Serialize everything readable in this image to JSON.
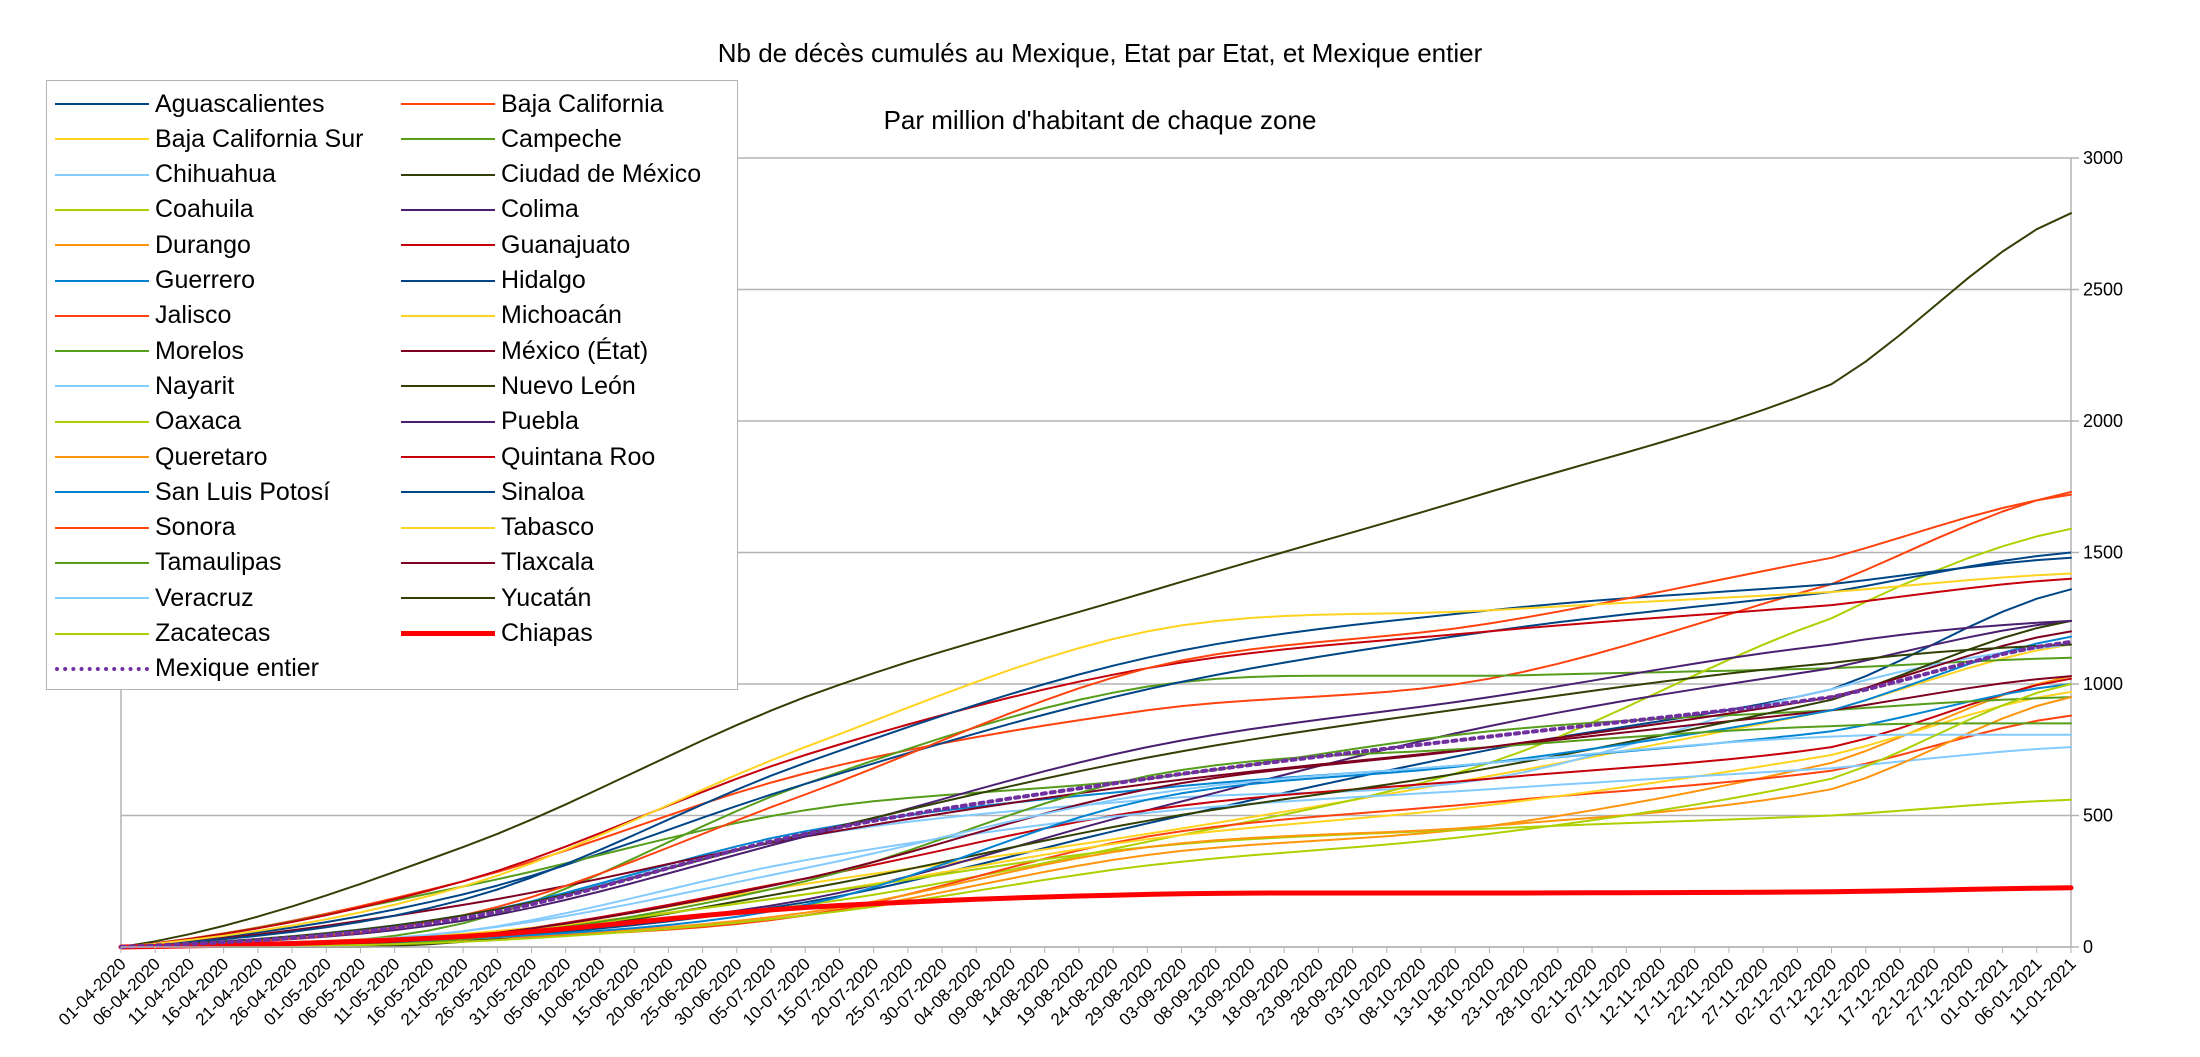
{
  "chart_data": {
    "type": "line",
    "title": "Nb de décès cumulés au Mexique, Etat par Etat, et Mexique entier",
    "subtitle": "Par million d'habitant de chaque zone",
    "xlabel": "",
    "ylabel": "",
    "ylim": [
      0,
      3000
    ],
    "yticks": [
      0,
      500,
      1000,
      1500,
      2000,
      2500,
      3000
    ],
    "y_axis_side": "right",
    "grid": true,
    "legend_position": "top-left",
    "x_tick_labels": [
      "01-04-2020",
      "06-04-2020",
      "11-04-2020",
      "16-04-2020",
      "21-04-2020",
      "26-04-2020",
      "01-05-2020",
      "06-05-2020",
      "11-05-2020",
      "16-05-2020",
      "21-05-2020",
      "26-05-2020",
      "31-05-2020",
      "05-06-2020",
      "10-06-2020",
      "15-06-2020",
      "20-06-2020",
      "25-06-2020",
      "30-06-2020",
      "05-07-2020",
      "10-07-2020",
      "15-07-2020",
      "20-07-2020",
      "25-07-2020",
      "30-07-2020",
      "04-08-2020",
      "09-08-2020",
      "14-08-2020",
      "19-08-2020",
      "24-08-2020",
      "29-08-2020",
      "03-09-2020",
      "08-09-2020",
      "13-09-2020",
      "18-09-2020",
      "23-09-2020",
      "28-09-2020",
      "03-10-2020",
      "08-10-2020",
      "13-10-2020",
      "18-10-2020",
      "23-10-2020",
      "28-10-2020",
      "02-11-2020",
      "07-11-2020",
      "12-11-2020",
      "17-11-2020",
      "22-11-2020",
      "27-11-2020",
      "02-12-2020",
      "07-12-2020",
      "12-12-2020",
      "17-12-2020",
      "22-12-2020",
      "27-12-2020",
      "01-01-2021",
      "06-01-2021",
      "11-01-2021"
    ],
    "x_anchor_index": [
      0,
      10,
      20,
      30,
      40,
      50,
      57
    ],
    "series": [
      {
        "name": "Aguascalientes",
        "color": "#004586",
        "width": 2,
        "values": [
          0,
          30,
          170,
          470,
          750,
          980,
          1360
        ]
      },
      {
        "name": "Baja California",
        "color": "#ff420e",
        "width": 2,
        "values": [
          0,
          250,
          660,
          900,
          1020,
          1380,
          1730
        ]
      },
      {
        "name": "Baja California Sur",
        "color": "#ffd320",
        "width": 2,
        "values": [
          0,
          40,
          240,
          430,
          650,
          900,
          1150
        ]
      },
      {
        "name": "Campeche",
        "color": "#579d1c",
        "width": 2,
        "values": [
          0,
          90,
          620,
          990,
          1030,
          1060,
          1100
        ]
      },
      {
        "name": "Chihuahua",
        "color": "#83caff",
        "width": 2,
        "values": [
          0,
          120,
          420,
          560,
          640,
          980,
          1150
        ]
      },
      {
        "name": "Ciudad de México",
        "color": "#314004",
        "width": 2,
        "values": [
          0,
          380,
          950,
          1350,
          1730,
          2140,
          2790
        ]
      },
      {
        "name": "Coahuila",
        "color": "#aecf00",
        "width": 2,
        "values": [
          0,
          50,
          160,
          400,
          700,
          1250,
          1590
        ]
      },
      {
        "name": "Colima",
        "color": "#4b1f6f",
        "width": 2,
        "values": [
          0,
          40,
          180,
          520,
          840,
          1060,
          1240
        ]
      },
      {
        "name": "Durango",
        "color": "#ff950e",
        "width": 2,
        "values": [
          0,
          25,
          120,
          350,
          460,
          700,
          1030
        ]
      },
      {
        "name": "Guanajuato",
        "color": "#c5000b",
        "width": 2,
        "values": [
          0,
          40,
          260,
          520,
          640,
          760,
          1020
        ]
      },
      {
        "name": "Guerrero",
        "color": "#0084d1",
        "width": 2,
        "values": [
          0,
          120,
          440,
          600,
          700,
          820,
          1000
        ]
      },
      {
        "name": "Hidalgo",
        "color": "#004586",
        "width": 2,
        "values": [
          0,
          200,
          620,
          980,
          1200,
          1350,
          1500
        ]
      },
      {
        "name": "Jalisco",
        "color": "#ff420e",
        "width": 2,
        "values": [
          0,
          30,
          120,
          420,
          550,
          670,
          880
        ]
      },
      {
        "name": "Michoacán",
        "color": "#ffd320",
        "width": 2,
        "values": [
          0,
          50,
          200,
          410,
          540,
          730,
          970
        ]
      },
      {
        "name": "Morelos",
        "color": "#579d1c",
        "width": 2,
        "values": [
          0,
          230,
          520,
          640,
          820,
          900,
          950
        ]
      },
      {
        "name": "México (État)",
        "color": "#7e0021",
        "width": 2,
        "values": [
          0,
          160,
          420,
          620,
          760,
          900,
          1030
        ]
      },
      {
        "name": "Nayarit",
        "color": "#83caff",
        "width": 2,
        "values": [
          0,
          60,
          330,
          510,
          600,
          680,
          760
        ]
      },
      {
        "name": "Nuevo León",
        "color": "#314004",
        "width": 2,
        "values": [
          0,
          20,
          220,
          480,
          680,
          940,
          1240
        ]
      },
      {
        "name": "Oaxaca",
        "color": "#aecf00",
        "width": 2,
        "values": [
          0,
          40,
          200,
          380,
          450,
          500,
          560
        ]
      },
      {
        "name": "Puebla",
        "color": "#4b1f6f",
        "width": 2,
        "values": [
          0,
          100,
          420,
          760,
          950,
          1150,
          1240
        ]
      },
      {
        "name": "Queretaro",
        "color": "#ff950e",
        "width": 2,
        "values": [
          0,
          30,
          130,
          380,
          460,
          600,
          950
        ]
      },
      {
        "name": "Quintana Roo",
        "color": "#c5000b",
        "width": 2,
        "values": [
          0,
          250,
          730,
          1060,
          1200,
          1300,
          1400
        ]
      },
      {
        "name": "San Luis Potosí",
        "color": "#0084d1",
        "width": 2,
        "values": [
          0,
          30,
          160,
          560,
          700,
          900,
          1180
        ]
      },
      {
        "name": "Sinaloa",
        "color": "#004586",
        "width": 2,
        "values": [
          0,
          180,
          700,
          1100,
          1280,
          1380,
          1480
        ]
      },
      {
        "name": "Sonora",
        "color": "#ff420e",
        "width": 2,
        "values": [
          0,
          120,
          580,
          1060,
          1230,
          1480,
          1720
        ]
      },
      {
        "name": "Tabasco",
        "color": "#ffd320",
        "width": 2,
        "values": [
          0,
          230,
          760,
          1200,
          1280,
          1350,
          1420
        ]
      },
      {
        "name": "Tamaulipas",
        "color": "#579d1c",
        "width": 2,
        "values": [
          0,
          30,
          250,
          650,
          760,
          840,
          850
        ]
      },
      {
        "name": "Tlaxcala",
        "color": "#7e0021",
        "width": 2,
        "values": [
          0,
          40,
          260,
          600,
          760,
          950,
          1200
        ]
      },
      {
        "name": "Veracruz",
        "color": "#83caff",
        "width": 2,
        "values": [
          0,
          60,
          300,
          580,
          700,
          800,
          800
        ]
      },
      {
        "name": "Yucatán",
        "color": "#314004",
        "width": 2,
        "values": [
          0,
          120,
          430,
          720,
          920,
          1080,
          1150
        ]
      },
      {
        "name": "Zacatecas",
        "color": "#aecf00",
        "width": 2,
        "values": [
          0,
          20,
          120,
          310,
          430,
          640,
          1000
        ]
      },
      {
        "name": "Chiapas",
        "color": "#ff0000",
        "width": 5,
        "values": [
          0,
          40,
          150,
          200,
          205,
          210,
          225
        ]
      },
      {
        "name": "Mexique entier",
        "color": "#7030a0",
        "width": 4,
        "dash": "4,5",
        "values": [
          0,
          110,
          430,
          640,
          800,
          950,
          1160
        ]
      }
    ]
  }
}
